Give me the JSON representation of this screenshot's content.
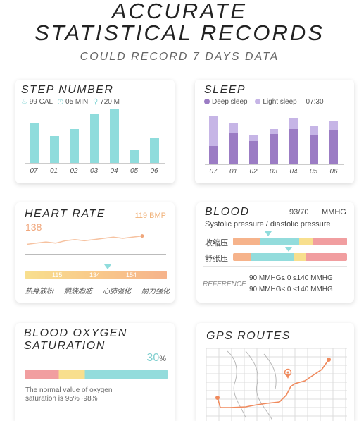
{
  "hero": {
    "title_line1": "ACCURATE",
    "title_line2": "STATISTICAL RECORDS",
    "subtitle": "COULD RECORD 7 DAYS DATA"
  },
  "step": {
    "title": "STEP NUMBER",
    "stats": [
      {
        "icon": "flame-icon",
        "text": "99 CAL"
      },
      {
        "icon": "clock-icon",
        "text": "05 MIN"
      },
      {
        "icon": "location-pin-icon",
        "text": "720 M"
      }
    ],
    "accent": "#8fdcdc"
  },
  "sleep": {
    "title": "SLEEP",
    "legend": [
      "Deep sleep",
      "Light sleep"
    ],
    "time": "07:30",
    "deep_color": "#9b7cc4",
    "light_color": "#c6b5e6"
  },
  "heart": {
    "title": "HEART RATE",
    "bmp": "119 BMP",
    "current": "138",
    "scale_labels": [
      "115",
      "134",
      "154"
    ],
    "zones": [
      "热身放松",
      "燃烧脂肪",
      "心肺强化",
      "耐力强化"
    ],
    "pointer_value": 134
  },
  "blood": {
    "title": "BLOOD",
    "reading": "93/70",
    "unit": "MMHG",
    "subtitle": "Systolic pressure / diastolic pressure",
    "rows": [
      "收缩压",
      "舒张压"
    ],
    "reference_label": "REFERENCE",
    "reference_lines": [
      "90 MMHG≤ 0 ≤140 MMHG",
      "90 MMHG≤ 0 ≤140 MMHG"
    ]
  },
  "oxygen": {
    "title_line1": "BLOOD OXYGEN",
    "title_line2": "SATURATION",
    "value": "30",
    "unit": "%",
    "note_line1": "The normal value of oxygen",
    "note_line2": "saturation is 95%~98%"
  },
  "gps": {
    "title": "GPS ROUTES"
  },
  "chart_data": [
    {
      "type": "bar",
      "categories": [
        "07",
        "01",
        "02",
        "03",
        "04",
        "05",
        "06"
      ],
      "values": [
        56,
        37,
        47,
        67,
        74,
        19,
        34
      ],
      "ylim": [
        0,
        80
      ]
    },
    {
      "type": "bar",
      "categories": [
        "07",
        "01",
        "02",
        "03",
        "04",
        "05",
        "06"
      ],
      "series": [
        {
          "name": "Deep sleep",
          "values": [
            24,
            41,
            31,
            40,
            47,
            39,
            46
          ]
        },
        {
          "name": "Light sleep",
          "values": [
            40,
            13,
            7,
            7,
            14,
            12,
            11
          ]
        }
      ],
      "ylim": [
        0,
        70
      ]
    },
    {
      "type": "line",
      "x": [
        0,
        1,
        2,
        3,
        4,
        5,
        6,
        7,
        8,
        9,
        10,
        11,
        12
      ],
      "values": [
        5,
        6,
        7,
        6,
        8,
        9,
        8,
        9,
        10,
        11,
        10,
        11,
        12
      ],
      "ylim": [
        0,
        20
      ]
    }
  ]
}
